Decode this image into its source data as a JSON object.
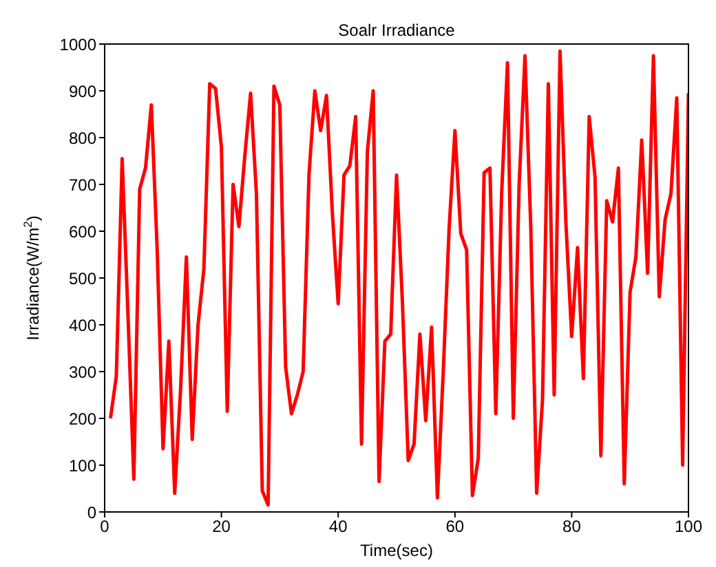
{
  "chart_data": {
    "type": "line",
    "title": "Soalr Irradiance",
    "xlabel": "Time(sec)",
    "ylabel": "Irradiance(W/m$^{2}$)",
    "x": [
      1,
      2,
      3,
      4,
      5,
      6,
      7,
      8,
      9,
      10,
      11,
      12,
      13,
      14,
      15,
      16,
      17,
      18,
      19,
      20,
      21,
      22,
      23,
      24,
      25,
      26,
      27,
      28,
      29,
      30,
      31,
      32,
      33,
      34,
      35,
      36,
      37,
      38,
      39,
      40,
      41,
      42,
      43,
      44,
      45,
      46,
      47,
      48,
      49,
      50,
      51,
      52,
      53,
      54,
      55,
      56,
      57,
      58,
      59,
      60,
      61,
      62,
      63,
      64,
      65,
      66,
      67,
      68,
      69,
      70,
      71,
      72,
      73,
      74,
      75,
      76,
      77,
      78,
      79,
      80,
      81,
      82,
      83,
      84,
      85,
      86,
      87,
      88,
      89,
      90,
      91,
      92,
      93,
      94,
      95,
      96,
      97,
      98,
      99,
      100
    ],
    "series": [
      {
        "color": "#ff0000",
        "values": [
          200,
          290,
          755,
          420,
          70,
          690,
          735,
          870,
          560,
          135,
          365,
          40,
          260,
          545,
          155,
          400,
          520,
          915,
          905,
          780,
          215,
          700,
          610,
          760,
          895,
          680,
          45,
          15,
          910,
          870,
          310,
          210,
          250,
          300,
          720,
          900,
          815,
          890,
          640,
          445,
          720,
          740,
          845,
          145,
          770,
          900,
          65,
          365,
          380,
          720,
          450,
          110,
          145,
          380,
          195,
          395,
          30,
          300,
          605,
          815,
          595,
          560,
          35,
          115,
          725,
          735,
          210,
          680,
          960,
          200,
          700,
          975,
          605,
          40,
          240,
          915,
          250,
          985,
          620,
          375,
          565,
          285,
          845,
          715,
          120,
          665,
          620,
          735,
          60,
          470,
          545,
          795,
          510,
          975,
          460,
          625,
          680,
          885,
          100,
          895
        ]
      }
    ],
    "xlim": [
      0,
      100
    ],
    "xticks": [
      0,
      20,
      40,
      60,
      80,
      100
    ],
    "ylim": [
      0,
      1000
    ],
    "yticks": [
      0,
      100,
      200,
      300,
      400,
      500,
      600,
      700,
      800,
      900,
      1000
    ],
    "grid": false,
    "legend": false,
    "marker": "none",
    "line_style": "solid"
  }
}
